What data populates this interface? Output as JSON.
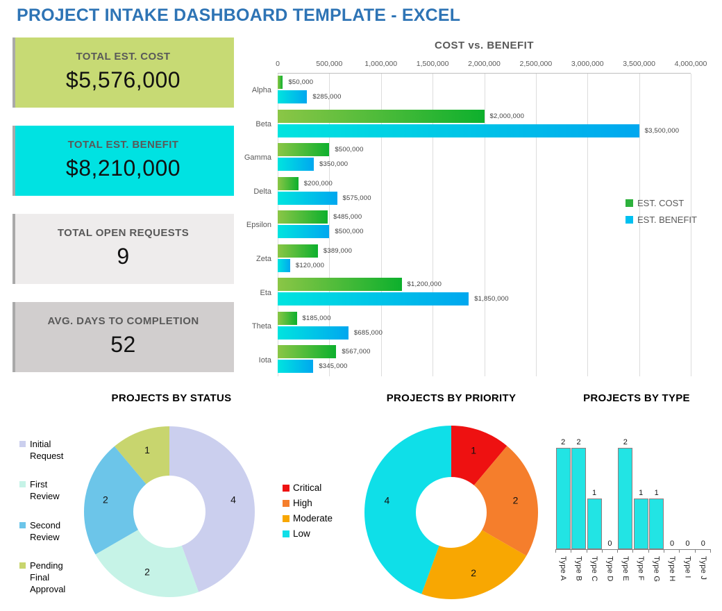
{
  "page_title": "PROJECT INTAKE DASHBOARD TEMPLATE - EXCEL",
  "colors": {
    "title_blue": "#2e74b5",
    "kpi_accent_strip": "#a9a9a9",
    "gridline": "#dcdcdc",
    "axis_text": "#595959"
  },
  "kpis": [
    {
      "label": "TOTAL EST. COST",
      "value": "$5,576,000",
      "bg": "#c7da74"
    },
    {
      "label": "TOTAL EST. BENEFIT",
      "value": "$8,210,000",
      "bg": "#00e2e2"
    },
    {
      "label": "TOTAL OPEN REQUESTS",
      "value": "9",
      "bg": "#eeecec"
    },
    {
      "label": "AVG. DAYS TO COMPLETION",
      "value": "52",
      "bg": "#d1cece"
    }
  ],
  "chart_data": [
    {
      "id": "cost_vs_benefit",
      "type": "bar",
      "orientation": "horizontal",
      "title": "COST vs. BENEFIT",
      "categories": [
        "Alpha",
        "Beta",
        "Gamma",
        "Delta",
        "Epsilon",
        "Zeta",
        "Eta",
        "Theta",
        "Iota"
      ],
      "series": [
        {
          "name": "EST. COST",
          "values": [
            50000,
            2000000,
            500000,
            200000,
            485000,
            389000,
            1200000,
            185000,
            567000
          ],
          "gradient": [
            "#8bc646",
            "#0db02d"
          ],
          "legend_color": "#2db13c"
        },
        {
          "name": "EST. BENEFIT",
          "values": [
            285000,
            3500000,
            350000,
            575000,
            500000,
            120000,
            1850000,
            685000,
            345000
          ],
          "gradient": [
            "#00e4df",
            "#00a7ef"
          ],
          "legend_color": "#00c0f0"
        }
      ],
      "xlim": [
        0,
        4000000
      ],
      "ticks": [
        "0",
        "500,000",
        "1,000,000",
        "1,500,000",
        "2,000,000",
        "2,500,000",
        "3,000,000",
        "3,500,000",
        "4,000,000"
      ],
      "data_label_prefix": "$",
      "grid": true,
      "legend_position": "right"
    },
    {
      "id": "projects_by_status",
      "type": "pie",
      "donut": true,
      "title": "PROJECTS BY STATUS",
      "slices": [
        {
          "label": "Initial Request",
          "value": 4,
          "color": "#cbcfee"
        },
        {
          "label": "First Review",
          "value": 2,
          "color": "#c6f3e7"
        },
        {
          "label": "Second Review",
          "value": 2,
          "color": "#6cc5e9"
        },
        {
          "label": "Pending Final Approval",
          "value": 1,
          "color": "#c8d56e"
        }
      ],
      "legend_position": "left"
    },
    {
      "id": "projects_by_priority",
      "type": "pie",
      "donut": true,
      "title": "PROJECTS BY PRIORITY",
      "slices": [
        {
          "label": "Critical",
          "value": 1,
          "color": "#ee1111"
        },
        {
          "label": "High",
          "value": 2,
          "color": "#f57e2c"
        },
        {
          "label": "Moderate",
          "value": 2,
          "color": "#f8a702"
        },
        {
          "label": "Low",
          "value": 4,
          "color": "#0fdfe8"
        }
      ],
      "legend_position": "left"
    },
    {
      "id": "projects_by_type",
      "type": "bar",
      "orientation": "vertical",
      "title": "PROJECTS BY TYPE",
      "categories": [
        "Type A",
        "Type B",
        "Type C",
        "Type D",
        "Type E",
        "Type F",
        "Type G",
        "Type H",
        "Type I",
        "Type J"
      ],
      "values": [
        2,
        2,
        1,
        0,
        2,
        1,
        1,
        0,
        0,
        0
      ],
      "ylim": [
        0,
        2
      ],
      "bar_color": "#22e4e4",
      "bar_border": "#96797a"
    }
  ]
}
